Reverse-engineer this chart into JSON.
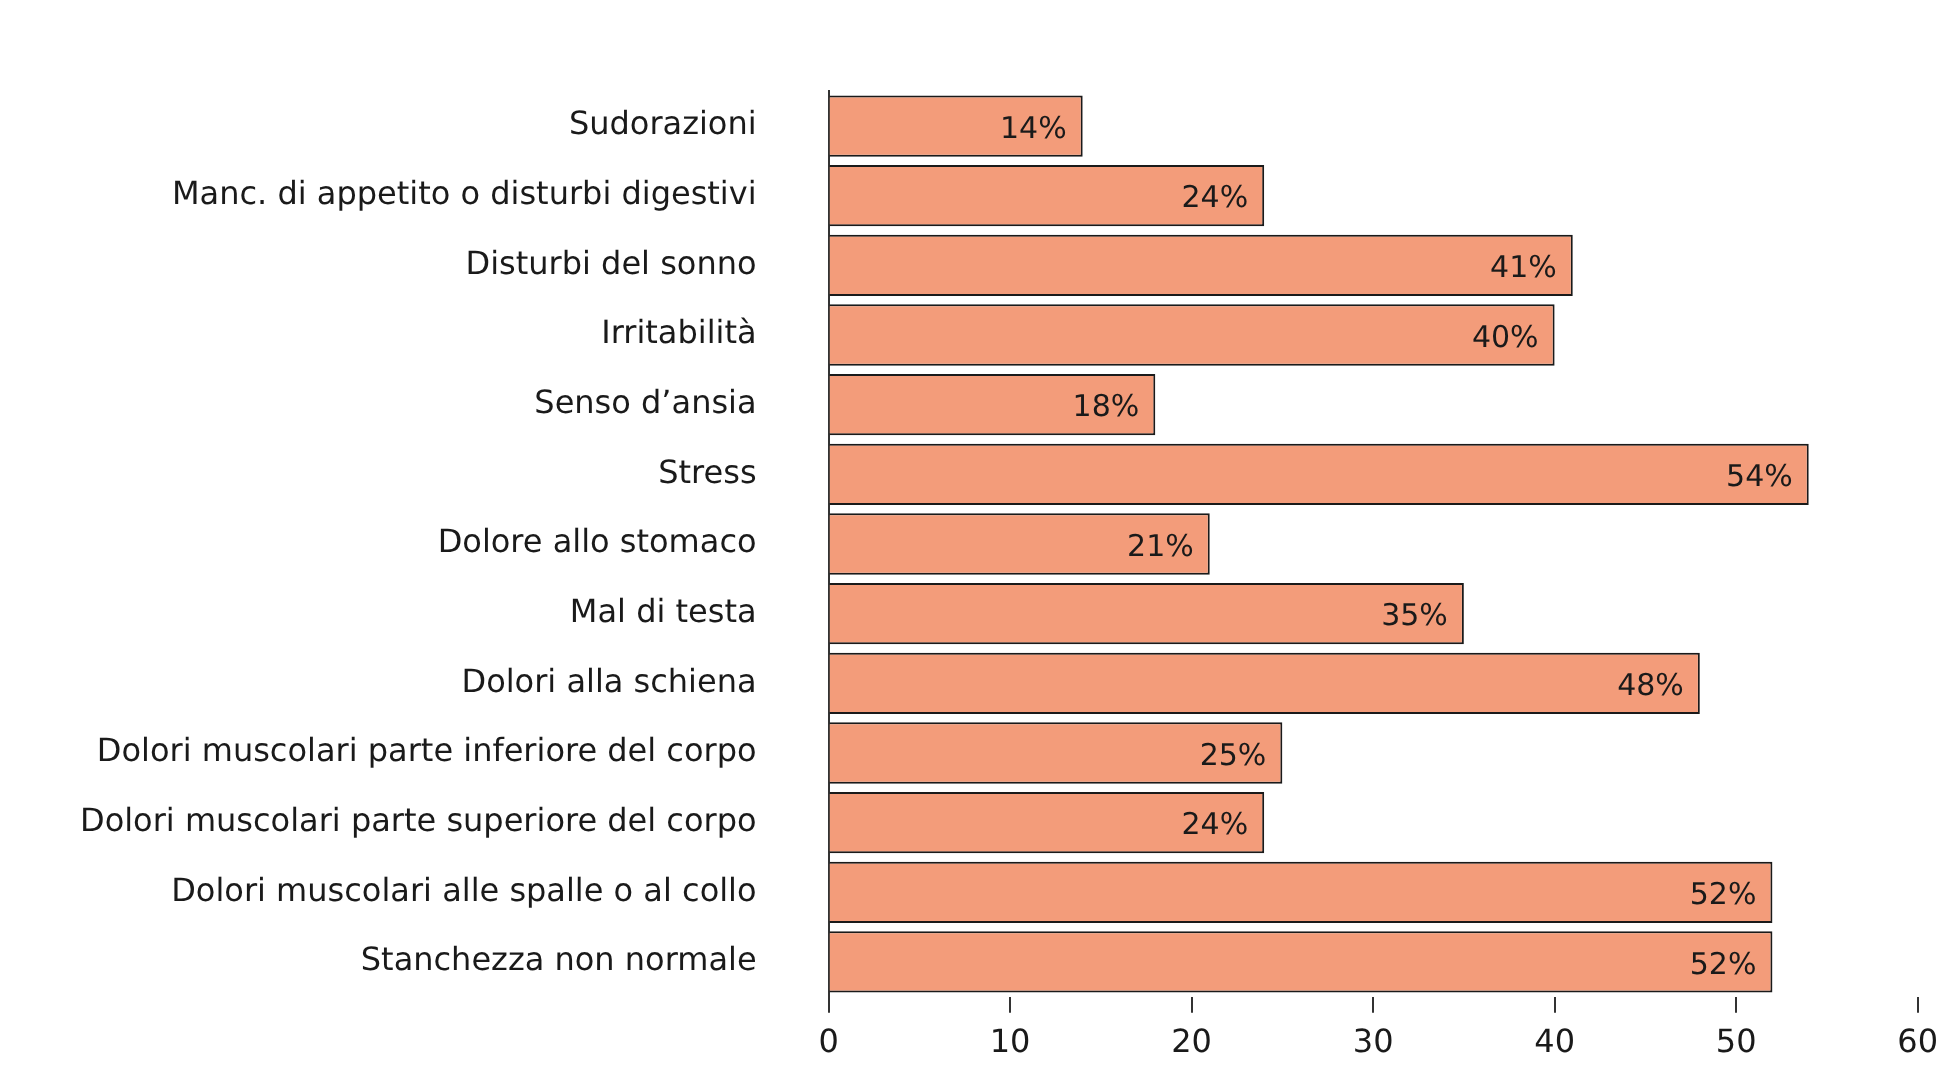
{
  "chart_data": {
    "type": "bar",
    "orientation": "horizontal",
    "categories": [
      "Sudorazioni",
      "Manc. di appetito o disturbi digestivi",
      "Disturbi del sonno",
      "Irritabilità",
      "Senso d’ansia",
      "Stress",
      "Dolore allo stomaco",
      "Mal di testa",
      "Dolori alla schiena",
      "Dolori muscolari parte inferiore del corpo",
      "Dolori muscolari parte superiore del corpo",
      "Dolori muscolari alle spalle o al collo",
      "Stanchezza non normale"
    ],
    "values": [
      14,
      24,
      41,
      40,
      18,
      54,
      21,
      35,
      48,
      25,
      24,
      52,
      52
    ],
    "value_labels": [
      "14%",
      "24%",
      "41%",
      "40%",
      "18%",
      "54%",
      "21%",
      "35%",
      "48%",
      "25%",
      "24%",
      "52%",
      "52%"
    ],
    "color": "#f39c7a",
    "xlim": [
      0,
      60
    ],
    "xticks": [
      0,
      10,
      20,
      30,
      40,
      50,
      60
    ],
    "grid": false,
    "legend": false
  }
}
